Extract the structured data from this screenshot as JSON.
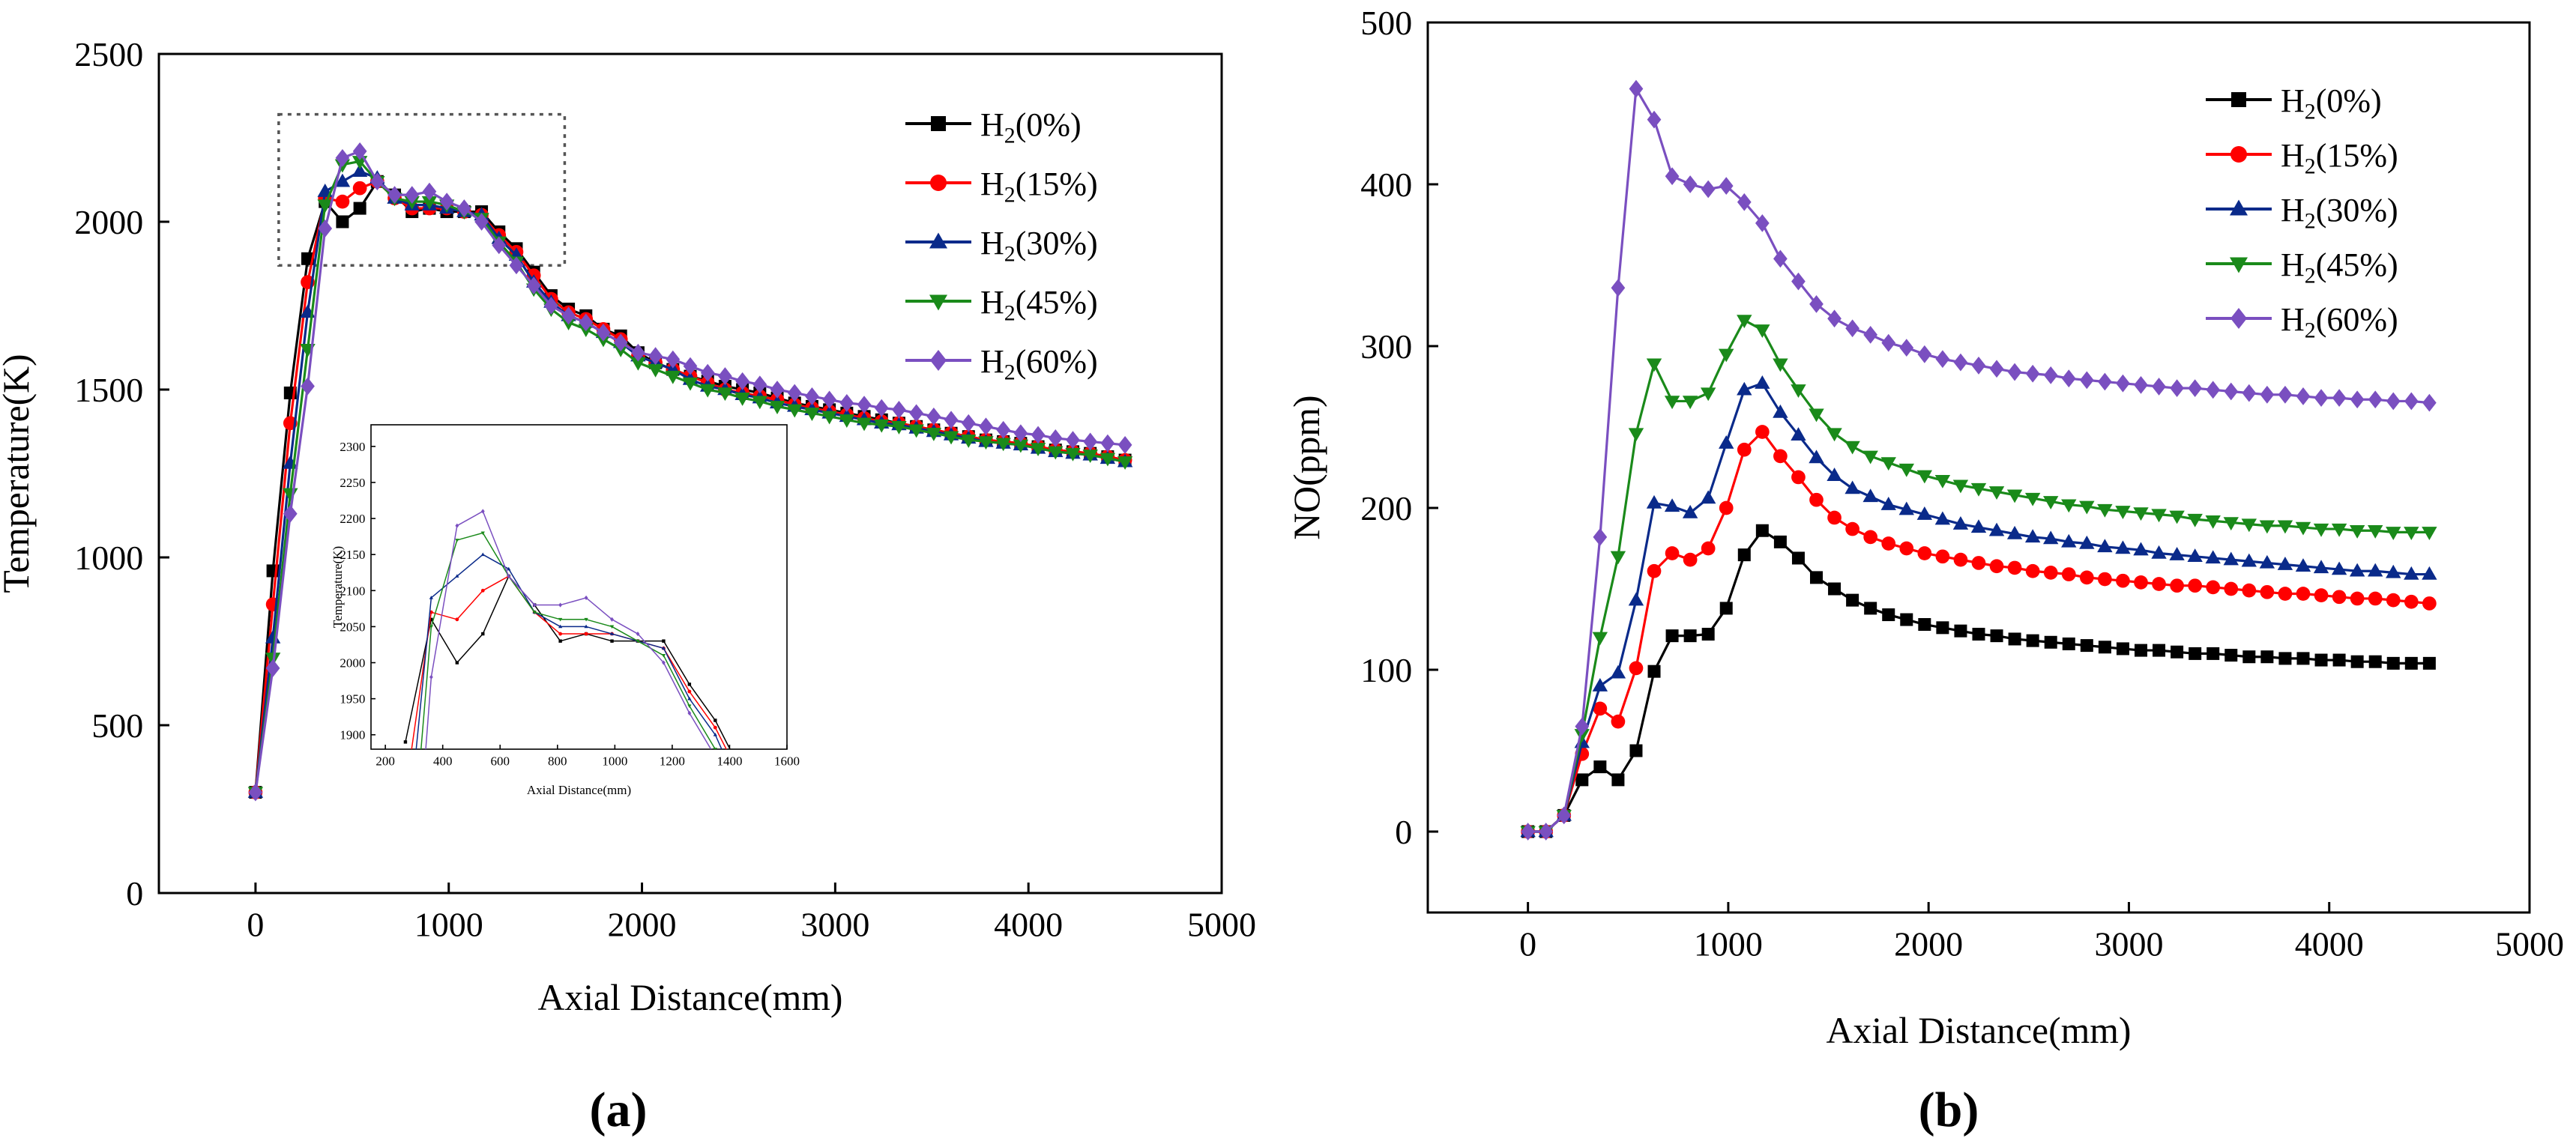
{
  "panels": {
    "a": {
      "caption": "(a)"
    },
    "b": {
      "caption": "(b)"
    }
  },
  "legend_labels": [
    "H2(0%)",
    "H2(15%)",
    "H2(30%)",
    "H2(45%)",
    "H2(60%)"
  ],
  "series_style": [
    {
      "color": "#000000",
      "marker": "square"
    },
    {
      "color": "#ff0000",
      "marker": "circle"
    },
    {
      "color": "#0a2a8a",
      "marker": "triangle-up"
    },
    {
      "color": "#1a8a1a",
      "marker": "triangle-down"
    },
    {
      "color": "#7a4fc0",
      "marker": "diamond"
    }
  ],
  "chart_data": [
    {
      "id": "a",
      "type": "line",
      "xlabel": "Axial Distance(mm)",
      "ylabel": "Temperature(K)",
      "xlim": [
        -500,
        5000
      ],
      "ylim": [
        0,
        2500
      ],
      "xticks": [
        0,
        1000,
        2000,
        3000,
        4000,
        5000
      ],
      "yticks": [
        0,
        500,
        1000,
        1500,
        2000,
        2500
      ],
      "legend_position": "top-right",
      "zoom_box": {
        "x": [
          120,
          1600
        ],
        "y": [
          1870,
          2320
        ]
      },
      "x": [
        0,
        90,
        180,
        270,
        360,
        450,
        540,
        630,
        720,
        810,
        900,
        990,
        1080,
        1170,
        1260,
        1350,
        1440,
        1530,
        1620,
        1710,
        1800,
        1890,
        1980,
        2070,
        2160,
        2250,
        2340,
        2430,
        2520,
        2610,
        2700,
        2790,
        2880,
        2970,
        3060,
        3150,
        3240,
        3330,
        3420,
        3510,
        3600,
        3690,
        3780,
        3870,
        3960,
        4050,
        4140,
        4230,
        4320,
        4410,
        4500
      ],
      "series": [
        {
          "name": "H2(0%)",
          "values": [
            300,
            960,
            1490,
            1890,
            2060,
            2000,
            2040,
            2120,
            2080,
            2030,
            2040,
            2030,
            2030,
            2030,
            1970,
            1920,
            1850,
            1780,
            1740,
            1720,
            1680,
            1660,
            1610,
            1580,
            1560,
            1540,
            1525,
            1510,
            1500,
            1490,
            1475,
            1460,
            1450,
            1440,
            1430,
            1420,
            1410,
            1400,
            1390,
            1380,
            1370,
            1360,
            1350,
            1345,
            1340,
            1330,
            1320,
            1315,
            1310,
            1300,
            1290
          ]
        },
        {
          "name": "H2(15%)",
          "values": [
            300,
            860,
            1400,
            1820,
            2070,
            2060,
            2100,
            2120,
            2070,
            2040,
            2040,
            2040,
            2030,
            2020,
            1960,
            1910,
            1840,
            1770,
            1730,
            1710,
            1680,
            1650,
            1600,
            1580,
            1560,
            1540,
            1520,
            1500,
            1490,
            1480,
            1470,
            1455,
            1445,
            1435,
            1425,
            1415,
            1405,
            1400,
            1390,
            1380,
            1370,
            1360,
            1350,
            1345,
            1340,
            1330,
            1320,
            1315,
            1310,
            1300,
            1290
          ]
        },
        {
          "name": "H2(30%)",
          "values": [
            300,
            760,
            1280,
            1730,
            2090,
            2120,
            2150,
            2130,
            2070,
            2050,
            2050,
            2040,
            2030,
            2020,
            1950,
            1900,
            1820,
            1760,
            1720,
            1700,
            1670,
            1640,
            1600,
            1580,
            1560,
            1530,
            1510,
            1500,
            1485,
            1475,
            1460,
            1450,
            1440,
            1430,
            1420,
            1410,
            1400,
            1395,
            1385,
            1375,
            1365,
            1355,
            1345,
            1340,
            1335,
            1325,
            1315,
            1310,
            1305,
            1295,
            1285
          ]
        },
        {
          "name": "H2(45%)",
          "values": [
            300,
            700,
            1190,
            1620,
            2050,
            2170,
            2180,
            2120,
            2070,
            2060,
            2060,
            2050,
            2030,
            2010,
            1940,
            1880,
            1800,
            1740,
            1700,
            1680,
            1650,
            1620,
            1580,
            1560,
            1540,
            1520,
            1500,
            1490,
            1475,
            1465,
            1450,
            1440,
            1430,
            1420,
            1410,
            1400,
            1395,
            1390,
            1380,
            1370,
            1360,
            1350,
            1345,
            1340,
            1335,
            1325,
            1315,
            1310,
            1305,
            1295,
            1285
          ]
        },
        {
          "name": "H2(60%)",
          "values": [
            300,
            670,
            1130,
            1510,
            1980,
            2190,
            2210,
            2120,
            2080,
            2080,
            2090,
            2060,
            2040,
            2000,
            1930,
            1870,
            1810,
            1750,
            1720,
            1700,
            1670,
            1640,
            1610,
            1600,
            1590,
            1570,
            1550,
            1540,
            1525,
            1515,
            1500,
            1490,
            1480,
            1470,
            1460,
            1455,
            1445,
            1440,
            1430,
            1420,
            1410,
            1400,
            1390,
            1380,
            1370,
            1365,
            1355,
            1350,
            1345,
            1340,
            1335
          ]
        }
      ]
    },
    {
      "id": "a-inset",
      "type": "line",
      "xlabel": "Axial Distance(mm)",
      "ylabel": "Temperature(K)",
      "xlim": [
        150,
        1600
      ],
      "ylim": [
        1880,
        2330
      ],
      "xticks": [
        200,
        400,
        600,
        800,
        1000,
        1200,
        1400,
        1600
      ],
      "yticks": [
        1900,
        1950,
        2000,
        2050,
        2100,
        2150,
        2200,
        2250,
        2300
      ],
      "x": [
        270,
        360,
        450,
        540,
        630,
        720,
        810,
        900,
        990,
        1080,
        1170,
        1260,
        1350,
        1440
      ],
      "series": [
        {
          "name": "H2(0%)",
          "values": [
            1890,
            2060,
            2000,
            2040,
            2120,
            2080,
            2030,
            2040,
            2030,
            2030,
            2030,
            1970,
            1920,
            1850
          ]
        },
        {
          "name": "H2(15%)",
          "values": [
            1820,
            2070,
            2060,
            2100,
            2120,
            2070,
            2040,
            2040,
            2040,
            2030,
            2020,
            1960,
            1910,
            1840
          ]
        },
        {
          "name": "H2(30%)",
          "values": [
            1730,
            2090,
            2120,
            2150,
            2130,
            2070,
            2050,
            2050,
            2040,
            2030,
            2020,
            1950,
            1900,
            1820
          ]
        },
        {
          "name": "H2(45%)",
          "values": [
            1620,
            2050,
            2170,
            2180,
            2120,
            2070,
            2060,
            2060,
            2050,
            2030,
            2010,
            1940,
            1880,
            1800
          ]
        },
        {
          "name": "H2(60%)",
          "values": [
            1510,
            1980,
            2190,
            2210,
            2120,
            2080,
            2080,
            2090,
            2060,
            2040,
            2000,
            1930,
            1870,
            1810
          ]
        }
      ]
    },
    {
      "id": "b",
      "type": "line",
      "xlabel": "Axial Distance(mm)",
      "ylabel": "NO(ppm)",
      "xlim": [
        -500,
        5000
      ],
      "ylim": [
        -50,
        500
      ],
      "xticks": [
        0,
        1000,
        2000,
        3000,
        4000,
        5000
      ],
      "yticks": [
        0,
        100,
        200,
        300,
        400,
        500
      ],
      "legend_position": "top-right",
      "x": [
        0,
        90,
        180,
        270,
        360,
        450,
        540,
        630,
        720,
        810,
        900,
        990,
        1080,
        1170,
        1260,
        1350,
        1440,
        1530,
        1620,
        1710,
        1800,
        1890,
        1980,
        2070,
        2160,
        2250,
        2340,
        2430,
        2520,
        2610,
        2700,
        2790,
        2880,
        2970,
        3060,
        3150,
        3240,
        3330,
        3420,
        3510,
        3600,
        3690,
        3780,
        3870,
        3960,
        4050,
        4140,
        4230,
        4320,
        4410,
        4500
      ],
      "series": [
        {
          "name": "H2(0%)",
          "values": [
            0,
            0,
            10,
            32,
            40,
            32,
            50,
            99,
            121,
            121,
            122,
            138,
            171,
            186,
            179,
            169,
            157,
            150,
            143,
            138,
            134,
            131,
            128,
            126,
            124,
            122,
            121,
            119,
            118,
            117,
            116,
            115,
            114,
            113,
            112,
            112,
            111,
            110,
            110,
            109,
            108,
            108,
            107,
            107,
            106,
            106,
            105,
            105,
            104,
            104,
            104
          ]
        },
        {
          "name": "H2(15%)",
          "values": [
            0,
            0,
            10,
            48,
            76,
            68,
            101,
            161,
            172,
            168,
            175,
            200,
            236,
            247,
            232,
            219,
            205,
            194,
            187,
            182,
            178,
            175,
            172,
            170,
            168,
            166,
            164,
            163,
            161,
            160,
            159,
            157,
            156,
            155,
            154,
            153,
            152,
            152,
            151,
            150,
            149,
            148,
            147,
            147,
            146,
            145,
            144,
            144,
            143,
            142,
            141
          ]
        },
        {
          "name": "H2(30%)",
          "values": [
            0,
            0,
            10,
            55,
            90,
            98,
            143,
            203,
            201,
            197,
            206,
            240,
            273,
            277,
            259,
            245,
            231,
            220,
            212,
            207,
            202,
            199,
            196,
            193,
            190,
            188,
            186,
            184,
            182,
            181,
            179,
            178,
            176,
            175,
            174,
            172,
            171,
            170,
            169,
            168,
            167,
            166,
            165,
            164,
            163,
            162,
            161,
            161,
            160,
            159,
            159
          ]
        },
        {
          "name": "H2(45%)",
          "values": [
            0,
            0,
            10,
            60,
            120,
            170,
            246,
            289,
            266,
            266,
            271,
            295,
            316,
            310,
            289,
            273,
            258,
            246,
            238,
            232,
            228,
            224,
            220,
            217,
            214,
            212,
            210,
            208,
            206,
            204,
            202,
            201,
            199,
            198,
            197,
            196,
            195,
            193,
            192,
            191,
            190,
            189,
            189,
            188,
            187,
            187,
            186,
            186,
            185,
            185,
            185
          ]
        },
        {
          "name": "H2(60%)",
          "values": [
            0,
            0,
            10,
            65,
            182,
            336,
            459,
            440,
            405,
            400,
            397,
            399,
            389,
            376,
            354,
            340,
            326,
            317,
            311,
            307,
            302,
            299,
            295,
            292,
            290,
            288,
            286,
            284,
            283,
            282,
            280,
            279,
            278,
            277,
            276,
            275,
            274,
            274,
            273,
            272,
            271,
            270,
            270,
            269,
            268,
            268,
            267,
            267,
            266,
            266,
            265
          ]
        }
      ]
    }
  ]
}
